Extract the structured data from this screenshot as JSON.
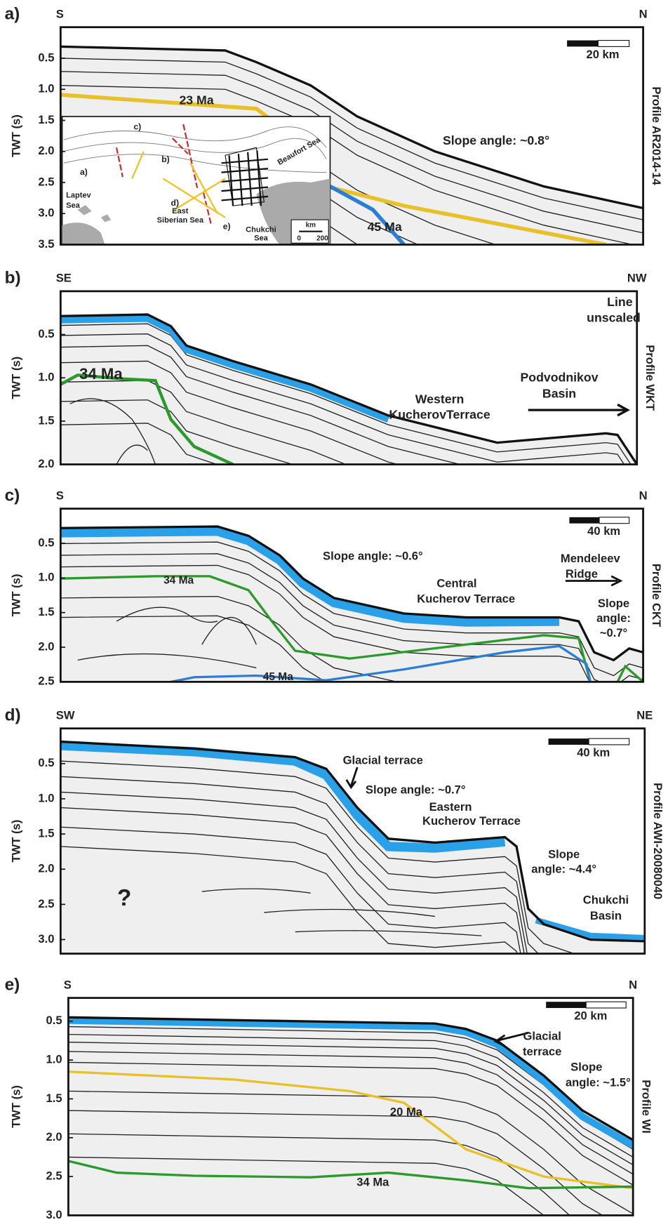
{
  "panels": [
    {
      "label": "a)",
      "left": "S",
      "right": "N",
      "y_label": "TWT (s)",
      "profile": "Profile AR2014-14",
      "ylim": [
        0,
        3.5
      ],
      "yticks": [
        0.5,
        {
          "value": 1,
          "label": "1.0"
        },
        1.5,
        {
          "value": 2,
          "label": "2.0"
        },
        2.5,
        {
          "value": 3,
          "label": "3.0"
        },
        3.5
      ],
      "scale_bar": "20 km",
      "annotations": [
        "23 Ma",
        "Slope angle: ~0.8°",
        "45 Ma"
      ],
      "inset": {
        "profile_labels": [
          "a)",
          "b)",
          "c)",
          "d)",
          "e)"
        ],
        "seas": [
          "Laptev",
          "Sea",
          "East",
          "Siberian Sea",
          "Chukchi",
          "Sea",
          "Beaufort Sea"
        ],
        "scale_unit": "km",
        "scale_ticks": [
          0,
          200
        ]
      }
    },
    {
      "label": "b)",
      "left": "SE",
      "right": "NW",
      "y_label": "TWT (s)",
      "profile": "Profile WKT",
      "ylim": [
        0,
        2
      ],
      "yticks": [
        0.5,
        {
          "value": 1,
          "label": "1.0"
        },
        1.5,
        {
          "value": 2,
          "label": "2.0"
        }
      ],
      "annotations": [
        "Line",
        "unscaled",
        "34 Ma",
        "Western",
        "KucherovTerrace",
        "Podvodnikov",
        "Basin"
      ]
    },
    {
      "label": "c)",
      "left": "S",
      "right": "N",
      "y_label": "TWT (s)",
      "profile": "Profile CKT",
      "ylim": [
        0,
        2.5
      ],
      "yticks": [
        0.5,
        {
          "value": 1,
          "label": "1.0"
        },
        1.5,
        {
          "value": 2,
          "label": "2.0"
        },
        2.5
      ],
      "scale_bar": "40 km",
      "annotations": [
        "Slope angle: ~0.6°",
        "34 Ma",
        "Central",
        "Kucherov Terrace",
        "Mendeleev",
        "Ridge",
        "Slope",
        "angle:",
        "~0.7°",
        "45 Ma"
      ]
    },
    {
      "label": "d)",
      "left": "SW",
      "right": "NE",
      "y_label": "TWT (s)",
      "profile": "Profile AWI-20080040",
      "ylim": [
        0,
        3.2
      ],
      "yticks": [
        0.5,
        {
          "value": 1,
          "label": "1.0"
        },
        1.5,
        {
          "value": 2,
          "label": "2.0"
        },
        2.5,
        {
          "value": 3,
          "label": "3.0"
        }
      ],
      "scale_bar": "40 km",
      "annotations": [
        "Glacial terrace",
        "Slope angle: ~0.7°",
        "Eastern",
        "Kucherov Terrace",
        "Slope",
        "angle: ~4.4°",
        "Chukchi",
        "Basin",
        "?"
      ]
    },
    {
      "label": "e)",
      "left": "S",
      "right": "N",
      "y_label": "TWT (s)",
      "profile": "Profile WI",
      "ylim": [
        0.2,
        3
      ],
      "yticks": [
        0.5,
        {
          "value": 1,
          "label": "1.0"
        },
        1.5,
        {
          "value": 2,
          "label": "2.0"
        },
        2.5,
        {
          "value": 3,
          "label": "3.0"
        }
      ],
      "scale_bar": "20 km",
      "annotations": [
        "Glacial",
        "terrace",
        "Slope",
        "angle: ~1.5°",
        "20 Ma",
        "34 Ma"
      ]
    }
  ]
}
